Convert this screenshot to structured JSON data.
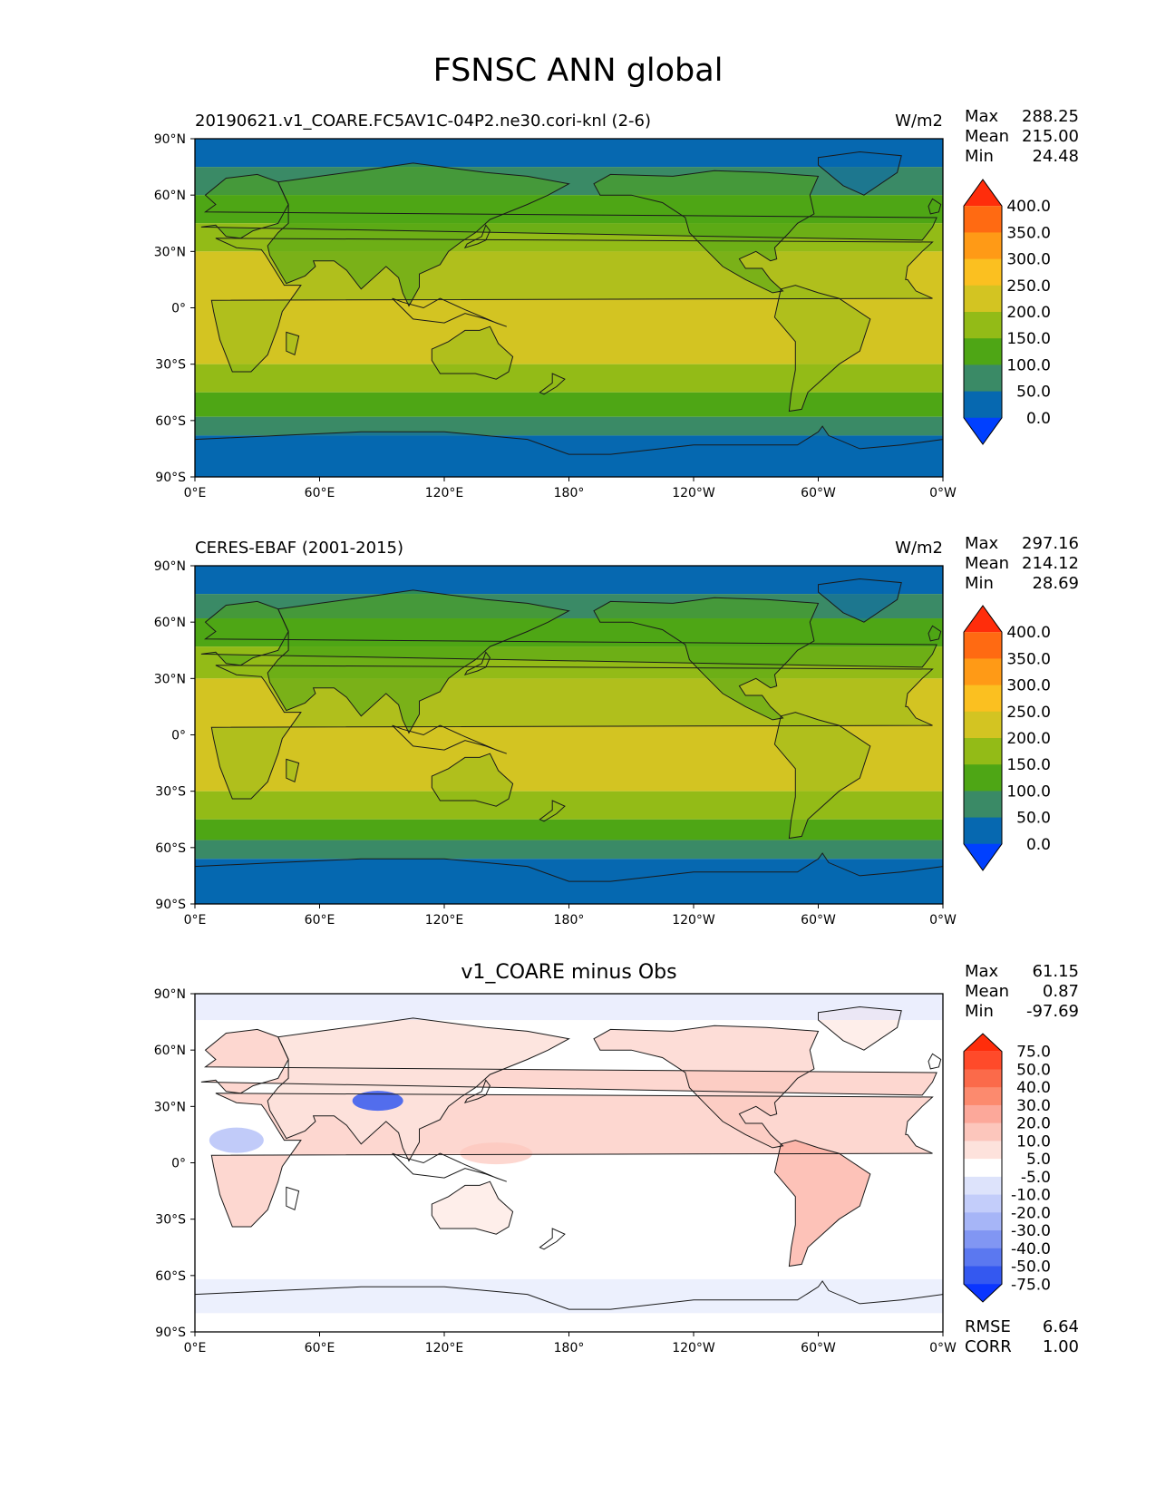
{
  "figure": {
    "title": "FSNSC ANN global",
    "colors": {
      "ocean_base_test": "#fbc020",
      "ocean_base_diff": "#ffffff",
      "coast": "#1a1a1a"
    },
    "panels": [
      {
        "id": "test",
        "left_title": "20190621.v1_COARE.FC5AV1C-04P2.ne30.cori-knl (2-6)",
        "center_title": "",
        "units": "W/m2",
        "stats": [
          {
            "label": "Max",
            "value": "288.25"
          },
          {
            "label": "Mean",
            "value": "215.00"
          },
          {
            "label": "Min",
            "value": "24.48"
          }
        ],
        "bottom_stats": [],
        "colorbar": {
          "labels": [
            "400.0",
            "350.0",
            "300.0",
            "250.0",
            "200.0",
            "150.0",
            "100.0",
            "50.0",
            "0.0"
          ],
          "colors": [
            "#ff2d0b",
            "#ff6a12",
            "#ff9a16",
            "#fbc020",
            "#d3c422",
            "#93bb17",
            "#4ea615",
            "#3a8a66",
            "#0668b0",
            "#0040ff"
          ]
        }
      },
      {
        "id": "ref",
        "left_title": "CERES-EBAF (2001-2015)",
        "center_title": "",
        "units": "W/m2",
        "stats": [
          {
            "label": "Max",
            "value": "297.16"
          },
          {
            "label": "Mean",
            "value": "214.12"
          },
          {
            "label": "Min",
            "value": "28.69"
          }
        ],
        "bottom_stats": [],
        "colorbar": {
          "labels": [
            "400.0",
            "350.0",
            "300.0",
            "250.0",
            "200.0",
            "150.0",
            "100.0",
            "50.0",
            "0.0"
          ],
          "colors": [
            "#ff2d0b",
            "#ff6a12",
            "#ff9a16",
            "#fbc020",
            "#d3c422",
            "#93bb17",
            "#4ea615",
            "#3a8a66",
            "#0668b0",
            "#0040ff"
          ]
        }
      },
      {
        "id": "diff",
        "left_title": "",
        "center_title": "v1_COARE minus Obs",
        "units": "",
        "stats": [
          {
            "label": "Max",
            "value": "61.15"
          },
          {
            "label": "Mean",
            "value": "0.87"
          },
          {
            "label": "Min",
            "value": "-97.69"
          }
        ],
        "bottom_stats": [
          {
            "label": "RMSE",
            "value": "6.64"
          },
          {
            "label": "CORR",
            "value": "1.00"
          }
        ],
        "colorbar": {
          "labels": [
            "75.0",
            "50.0",
            "40.0",
            "30.0",
            "20.0",
            "10.0",
            "5.0",
            "-5.0",
            "-10.0",
            "-20.0",
            "-30.0",
            "-40.0",
            "-50.0",
            "-75.0"
          ],
          "colors": [
            "#ff2d0b",
            "#ff4a2a",
            "#fb6a4a",
            "#fc8a6e",
            "#fca89a",
            "#fcc6bc",
            "#fde2dc",
            "#ffffff",
            "#dde3fb",
            "#c3cdfa",
            "#a6b5f7",
            "#8196f3",
            "#5b78f0",
            "#3458f0",
            "#0a35ff"
          ]
        }
      }
    ],
    "axes": {
      "lat_ticks": [
        "90°N",
        "60°N",
        "30°N",
        "0°",
        "30°S",
        "60°S",
        "90°S"
      ],
      "lon_ticks": [
        "0°E",
        "60°E",
        "120°E",
        "180°",
        "120°W",
        "60°W",
        "0°W"
      ]
    }
  },
  "chart_data": [
    {
      "type": "heatmap",
      "title": "FSNSC ANN global",
      "subtitle": "20190621.v1_COARE.FC5AV1C-04P2.ne30.cori-knl (2-6)",
      "units": "W/m2",
      "x_range": [
        0,
        360
      ],
      "y_range": [
        -90,
        90
      ],
      "levels": [
        0,
        50,
        100,
        150,
        200,
        250,
        300,
        350,
        400
      ],
      "zonal_bands": [
        {
          "lat": [
            75,
            90
          ],
          "level": 50
        },
        {
          "lat": [
            60,
            75
          ],
          "level": 100
        },
        {
          "lat": [
            45,
            60
          ],
          "level": 150
        },
        {
          "lat": [
            30,
            45
          ],
          "level": 200
        },
        {
          "lat": [
            -30,
            30
          ],
          "level": 250
        },
        {
          "lat": [
            -45,
            -30
          ],
          "level": 200
        },
        {
          "lat": [
            -58,
            -45
          ],
          "level": 150
        },
        {
          "lat": [
            -68,
            -58
          ],
          "level": 100
        },
        {
          "lat": [
            -90,
            -68
          ],
          "level": 50
        }
      ],
      "stats": {
        "max": 288.25,
        "mean": 215.0,
        "min": 24.48
      }
    },
    {
      "type": "heatmap",
      "subtitle": "CERES-EBAF (2001-2015)",
      "units": "W/m2",
      "x_range": [
        0,
        360
      ],
      "y_range": [
        -90,
        90
      ],
      "levels": [
        0,
        50,
        100,
        150,
        200,
        250,
        300,
        350,
        400
      ],
      "zonal_bands": [
        {
          "lat": [
            75,
            90
          ],
          "level": 50
        },
        {
          "lat": [
            62,
            75
          ],
          "level": 100
        },
        {
          "lat": [
            47,
            62
          ],
          "level": 150
        },
        {
          "lat": [
            30,
            47
          ],
          "level": 200
        },
        {
          "lat": [
            -30,
            30
          ],
          "level": 250
        },
        {
          "lat": [
            -45,
            -30
          ],
          "level": 200
        },
        {
          "lat": [
            -56,
            -45
          ],
          "level": 150
        },
        {
          "lat": [
            -66,
            -56
          ],
          "level": 100
        },
        {
          "lat": [
            -90,
            -66
          ],
          "level": 50
        }
      ],
      "stats": {
        "max": 297.16,
        "mean": 214.12,
        "min": 28.69
      }
    },
    {
      "type": "heatmap",
      "subtitle": "v1_COARE minus Obs",
      "x_range": [
        0,
        360
      ],
      "y_range": [
        -90,
        90
      ],
      "levels": [
        -75,
        -50,
        -40,
        -30,
        -20,
        -10,
        -5,
        5,
        10,
        20,
        30,
        40,
        50,
        75
      ],
      "stats": {
        "max": 61.15,
        "mean": 0.87,
        "min": -97.69,
        "rmse": 6.64,
        "corr": 1.0
      }
    }
  ]
}
